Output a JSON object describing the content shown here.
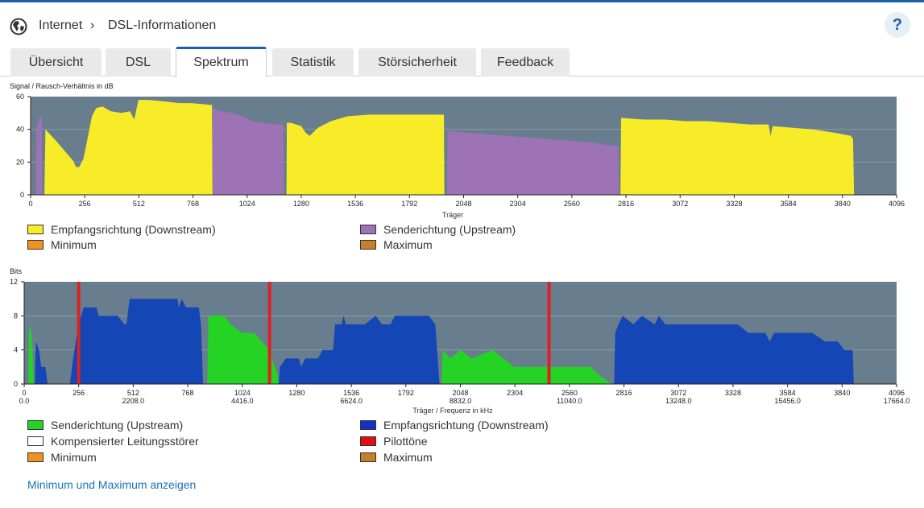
{
  "breadcrumb": {
    "root": "Internet",
    "separator": "›",
    "current": "DSL-Informationen"
  },
  "help": {
    "label": "?"
  },
  "colors": {
    "accent": "#1a5fa8",
    "plot_bg": "#687e8e",
    "downstream": "#f7ec27",
    "upstream_snr": "#9e73b6",
    "upstream_bits": "#25d325",
    "bits_downstream": "#1546b5",
    "pilot": "#e02020"
  },
  "tabs": [
    {
      "label": "Übersicht",
      "active": false
    },
    {
      "label": "DSL",
      "active": false
    },
    {
      "label": "Spektrum",
      "active": true
    },
    {
      "label": "Statistik",
      "active": false
    },
    {
      "label": "Störsicherheit",
      "active": false
    },
    {
      "label": "Feedback",
      "active": false
    }
  ],
  "snr_chart": {
    "ylabel": "Signal / Rausch-Verhältnis in dB",
    "xlabel": "Träger",
    "legend": [
      {
        "label": "Empfangsrichtung (Downstream)",
        "color": "#f7ec27"
      },
      {
        "label": "Senderichtung (Upstream)",
        "color": "#9e73b6"
      },
      {
        "label": "Minimum",
        "color": "#f39220"
      },
      {
        "label": "Maximum",
        "color": "#c7802a"
      }
    ]
  },
  "bits_chart": {
    "ylabel": "Bits",
    "xlabel": "Träger / Frequenz in kHz",
    "legend": [
      {
        "label": "Senderichtung (Upstream)",
        "color": "#25d325"
      },
      {
        "label": "Empfangsrichtung (Downstream)",
        "color": "#1530c8"
      },
      {
        "label": "Kompensierter Leitungsstörer",
        "color": "#ffffff"
      },
      {
        "label": "Pilottöne",
        "color": "#e01010"
      },
      {
        "label": "Minimum",
        "color": "#f39220"
      },
      {
        "label": "Maximum",
        "color": "#c7802a"
      }
    ]
  },
  "chart_data": [
    {
      "type": "area",
      "ylabel": "Signal / Rausch-Verhältnis in dB",
      "xlabel": "Träger",
      "xlim": [
        0,
        4096
      ],
      "ylim": [
        0,
        60
      ],
      "yticks": [
        "0",
        "20",
        "40",
        "60"
      ],
      "xticks": [
        "0",
        "256",
        "512",
        "768",
        "1024",
        "1280",
        "1536",
        "1792",
        "2048",
        "2304",
        "2560",
        "2816",
        "3072",
        "3328",
        "3584",
        "3840",
        "4096"
      ],
      "series": [
        {
          "name": "Senderichtung (Upstream)",
          "color": "#9e73b6",
          "points": [
            [
              25,
              0
            ],
            [
              28,
              40
            ],
            [
              40,
              47
            ],
            [
              52,
              47
            ],
            [
              55,
              0
            ],
            [
              860,
              0
            ],
            [
              862,
              53
            ],
            [
              900,
              51
            ],
            [
              950,
              50
            ],
            [
              1000,
              48
            ],
            [
              1050,
              45
            ],
            [
              1100,
              44
            ],
            [
              1150,
              43
            ],
            [
              1195,
              43
            ],
            [
              1198,
              0
            ],
            [
              1970,
              0
            ],
            [
              1972,
              39
            ],
            [
              2050,
              38
            ],
            [
              2150,
              37
            ],
            [
              2250,
              36
            ],
            [
              2350,
              35
            ],
            [
              2450,
              34
            ],
            [
              2550,
              33
            ],
            [
              2650,
              32
            ],
            [
              2750,
              30
            ],
            [
              2780,
              30
            ],
            [
              2782,
              0
            ]
          ]
        },
        {
          "name": "Empfangsrichtung (Downstream)",
          "color": "#f7ec27",
          "points": [
            [
              65,
              0
            ],
            [
              70,
              40
            ],
            [
              120,
              33
            ],
            [
              160,
              27
            ],
            [
              200,
              21
            ],
            [
              215,
              17
            ],
            [
              230,
              17
            ],
            [
              250,
              22
            ],
            [
              270,
              35
            ],
            [
              290,
              48
            ],
            [
              310,
              53
            ],
            [
              340,
              54
            ],
            [
              380,
              51
            ],
            [
              430,
              50
            ],
            [
              470,
              51
            ],
            [
              490,
              46
            ],
            [
              510,
              58
            ],
            [
              560,
              58
            ],
            [
              640,
              57
            ],
            [
              700,
              56
            ],
            [
              760,
              56
            ],
            [
              850,
              55
            ],
            [
              858,
              55
            ],
            [
              860,
              0
            ],
            [
              1210,
              0
            ],
            [
              1212,
              44
            ],
            [
              1230,
              44
            ],
            [
              1280,
              42
            ],
            [
              1300,
              38
            ],
            [
              1320,
              36
            ],
            [
              1360,
              41
            ],
            [
              1420,
              45
            ],
            [
              1500,
              48
            ],
            [
              1600,
              49
            ],
            [
              1700,
              49
            ],
            [
              1800,
              49
            ],
            [
              1900,
              49
            ],
            [
              1955,
              49
            ],
            [
              1957,
              0
            ],
            [
              2790,
              0
            ],
            [
              2793,
              47
            ],
            [
              2900,
              46
            ],
            [
              3000,
              46
            ],
            [
              3100,
              45
            ],
            [
              3200,
              45
            ],
            [
              3300,
              44
            ],
            [
              3400,
              43
            ],
            [
              3490,
              43
            ],
            [
              3500,
              36
            ],
            [
              3510,
              42
            ],
            [
              3600,
              41
            ],
            [
              3700,
              40
            ],
            [
              3800,
              38
            ],
            [
              3880,
              36
            ],
            [
              3890,
              34
            ],
            [
              3895,
              0
            ]
          ]
        }
      ]
    },
    {
      "type": "area",
      "ylabel": "Bits",
      "xlabel": "Träger / Frequenz in kHz",
      "xlim": [
        0,
        4096
      ],
      "ylim": [
        0,
        12
      ],
      "yticks": [
        "0",
        "4",
        "8",
        "12"
      ],
      "xticks": [
        "0",
        "256",
        "512",
        "768",
        "1024",
        "1280",
        "1536",
        "1792",
        "2048",
        "2304",
        "2560",
        "2816",
        "3072",
        "3328",
        "3584",
        "3840",
        "4096"
      ],
      "freq_ticks": [
        "0.0",
        "2208.0",
        "4416.0",
        "6624.0",
        "8832.0",
        "11040.0",
        "13248.0",
        "15456.0",
        "17664.0"
      ],
      "series": [
        {
          "name": "Senderichtung (Upstream)",
          "color": "#25d325",
          "points": [
            [
              20,
              0
            ],
            [
              22,
              6
            ],
            [
              30,
              7
            ],
            [
              40,
              4
            ],
            [
              45,
              0
            ],
            [
              860,
              0
            ],
            [
              865,
              8
            ],
            [
              940,
              8
            ],
            [
              970,
              7
            ],
            [
              1020,
              6
            ],
            [
              1080,
              6
            ],
            [
              1150,
              4
            ],
            [
              1190,
              1
            ],
            [
              1195,
              0
            ],
            [
              1960,
              0
            ],
            [
              1965,
              4
            ],
            [
              2000,
              3
            ],
            [
              2050,
              4
            ],
            [
              2100,
              3
            ],
            [
              2200,
              4
            ],
            [
              2250,
              3
            ],
            [
              2300,
              2
            ],
            [
              2400,
              2
            ],
            [
              2500,
              2
            ],
            [
              2660,
              2
            ],
            [
              2700,
              1
            ],
            [
              2760,
              0
            ]
          ]
        },
        {
          "name": "Empfangsrichtung (Downstream)",
          "color": "#1546b5",
          "points": [
            [
              50,
              0
            ],
            [
              55,
              5
            ],
            [
              70,
              4
            ],
            [
              80,
              2
            ],
            [
              100,
              2
            ],
            [
              110,
              0
            ],
            [
              215,
              0
            ],
            [
              230,
              3
            ],
            [
              255,
              7
            ],
            [
              280,
              9
            ],
            [
              340,
              9
            ],
            [
              350,
              8
            ],
            [
              440,
              8
            ],
            [
              470,
              7
            ],
            [
              480,
              7
            ],
            [
              490,
              9
            ],
            [
              495,
              10
            ],
            [
              720,
              10
            ],
            [
              725,
              9
            ],
            [
              740,
              10
            ],
            [
              760,
              9
            ],
            [
              820,
              9
            ],
            [
              830,
              7
            ],
            [
              840,
              0
            ],
            [
              1195,
              0
            ],
            [
              1200,
              2
            ],
            [
              1230,
              3
            ],
            [
              1290,
              3
            ],
            [
              1300,
              2
            ],
            [
              1320,
              3
            ],
            [
              1380,
              3
            ],
            [
              1400,
              4
            ],
            [
              1450,
              4
            ],
            [
              1460,
              7
            ],
            [
              1490,
              7
            ],
            [
              1500,
              8
            ],
            [
              1510,
              7
            ],
            [
              1600,
              7
            ],
            [
              1650,
              8
            ],
            [
              1680,
              7
            ],
            [
              1720,
              7
            ],
            [
              1740,
              8
            ],
            [
              1900,
              8
            ],
            [
              1930,
              7
            ],
            [
              1950,
              0
            ],
            [
              2770,
              0
            ],
            [
              2775,
              6
            ],
            [
              2790,
              7
            ],
            [
              2810,
              8
            ],
            [
              2860,
              7
            ],
            [
              2900,
              8
            ],
            [
              2960,
              7
            ],
            [
              2980,
              8
            ],
            [
              3010,
              7
            ],
            [
              3350,
              7
            ],
            [
              3400,
              6
            ],
            [
              3480,
              6
            ],
            [
              3500,
              5
            ],
            [
              3520,
              6
            ],
            [
              3700,
              6
            ],
            [
              3760,
              5
            ],
            [
              3820,
              5
            ],
            [
              3850,
              4
            ],
            [
              3890,
              4
            ],
            [
              3895,
              0
            ]
          ]
        },
        {
          "name": "Pilottöne",
          "color": "#e02020",
          "pilots": [
            256,
            1152,
            2464
          ]
        }
      ]
    }
  ]
}
